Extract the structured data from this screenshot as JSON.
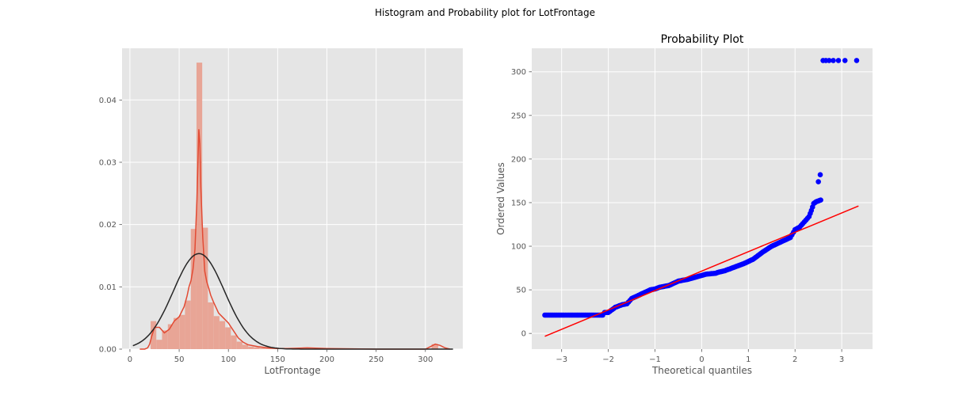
{
  "figure": {
    "suptitle": "Histogram and Probability plot for LotFrontage"
  },
  "colors": {
    "background": "#ffffff",
    "axes_bg": "#e5e5e5",
    "grid": "#ffffff",
    "hist": "#e8a596",
    "kde": "#e24a33",
    "normal_fit": "#262626",
    "qq_points": "#0000ff",
    "qq_line": "#ff0000",
    "tick_text": "#555555",
    "label_text": "#555555"
  },
  "chart_data": [
    {
      "type": "histogram",
      "title": "",
      "xlabel": "LotFrontage",
      "ylabel": "",
      "xlim": [
        -8,
        338
      ],
      "ylim": [
        0,
        0.0483
      ],
      "xticks": [
        0,
        50,
        100,
        150,
        200,
        250,
        300
      ],
      "xtick_labels": [
        "0",
        "50",
        "100",
        "150",
        "200",
        "250",
        "300"
      ],
      "yticks": [
        0,
        0.01,
        0.02,
        0.03,
        0.04
      ],
      "ytick_labels": [
        "0.00",
        "0.01",
        "0.02",
        "0.03",
        "0.04"
      ],
      "grid": true,
      "bins": [
        {
          "x0": 21.0,
          "x1": 26.8,
          "density": 0.0045
        },
        {
          "x0": 26.8,
          "x1": 32.6,
          "density": 0.0015
        },
        {
          "x0": 32.6,
          "x1": 38.5,
          "density": 0.003
        },
        {
          "x0": 38.5,
          "x1": 44.3,
          "density": 0.004
        },
        {
          "x0": 44.3,
          "x1": 50.1,
          "density": 0.005
        },
        {
          "x0": 50.1,
          "x1": 55.9,
          "density": 0.0055
        },
        {
          "x0": 55.9,
          "x1": 61.8,
          "density": 0.0078
        },
        {
          "x0": 61.8,
          "x1": 67.6,
          "density": 0.0193
        },
        {
          "x0": 67.6,
          "x1": 73.4,
          "density": 0.046
        },
        {
          "x0": 73.4,
          "x1": 79.2,
          "density": 0.0195
        },
        {
          "x0": 79.2,
          "x1": 85.1,
          "density": 0.0075
        },
        {
          "x0": 85.1,
          "x1": 90.9,
          "density": 0.0053
        },
        {
          "x0": 90.9,
          "x1": 96.7,
          "density": 0.0045
        },
        {
          "x0": 96.7,
          "x1": 102.5,
          "density": 0.0035
        },
        {
          "x0": 102.5,
          "x1": 108.4,
          "density": 0.0022
        },
        {
          "x0": 108.4,
          "x1": 114.2,
          "density": 0.0012
        },
        {
          "x0": 114.2,
          "x1": 120.0,
          "density": 0.0007
        },
        {
          "x0": 120.0,
          "x1": 125.8,
          "density": 0.0004
        },
        {
          "x0": 125.8,
          "x1": 131.7,
          "density": 0.0003
        },
        {
          "x0": 131.7,
          "x1": 137.5,
          "density": 0.0002
        },
        {
          "x0": 137.5,
          "x1": 143.3,
          "density": 0.0002
        },
        {
          "x0": 143.3,
          "x1": 149.1,
          "density": 0.0001
        },
        {
          "x0": 149.1,
          "x1": 155.0,
          "density": 0.0001
        },
        {
          "x0": 172.3,
          "x1": 178.2,
          "density": 0.0001
        },
        {
          "x0": 178.2,
          "x1": 184.0,
          "density": 0.0001
        },
        {
          "x0": 306.3,
          "x1": 313.0,
          "density": 0.0008
        }
      ],
      "kde": {
        "name": "",
        "x": [
          10,
          15,
          18,
          20,
          22,
          25,
          30,
          35,
          40,
          45,
          50,
          55,
          58,
          60,
          62,
          64,
          66,
          68,
          69,
          70,
          71,
          72,
          74,
          76,
          78,
          80,
          82,
          85,
          88,
          90,
          95,
          100,
          105,
          110,
          115,
          120,
          130,
          140,
          150,
          160,
          180,
          200,
          250,
          290,
          300,
          305,
          310,
          315,
          320,
          325
        ],
        "y": [
          0.0,
          0.0,
          0.0002,
          0.0008,
          0.002,
          0.0035,
          0.0035,
          0.0026,
          0.0032,
          0.0045,
          0.0052,
          0.0068,
          0.0085,
          0.01,
          0.011,
          0.0128,
          0.016,
          0.024,
          0.0295,
          0.0353,
          0.033,
          0.026,
          0.0178,
          0.0125,
          0.0108,
          0.0098,
          0.0087,
          0.0075,
          0.0065,
          0.0058,
          0.005,
          0.0042,
          0.003,
          0.0018,
          0.0011,
          0.0007,
          0.0004,
          0.0002,
          0.0001,
          0.0001,
          0.0002,
          0.0001,
          0.0,
          0.0,
          0.0,
          0.0004,
          0.0008,
          0.0006,
          0.0002,
          0.0
        ]
      },
      "normal_fit": {
        "name": "",
        "mean": 70.05,
        "std": 26.0,
        "x_range": [
          3,
          328
        ]
      }
    },
    {
      "type": "scatter",
      "title": "Probability Plot",
      "xlabel": "Theoretical quantiles",
      "ylabel": "Ordered Values",
      "xlim": [
        -3.64,
        3.66
      ],
      "ylim": [
        -18,
        327
      ],
      "xticks": [
        -3,
        -2,
        -1,
        0,
        1,
        2,
        3
      ],
      "xtick_labels": [
        "−3",
        "−2",
        "−1",
        "0",
        "1",
        "2",
        "3"
      ],
      "yticks": [
        0,
        50,
        100,
        150,
        200,
        250,
        300
      ],
      "ytick_labels": [
        "0",
        "50",
        "100",
        "150",
        "200",
        "250",
        "300"
      ],
      "grid": true,
      "quantile_curve": {
        "x": [
          -3.36,
          -3.1,
          -2.95,
          -2.85,
          -2.7,
          -2.5,
          -2.3,
          -2.2,
          -2.12,
          -2.08,
          -2.0,
          -1.85,
          -1.7,
          -1.6,
          -1.5,
          -1.3,
          -1.1,
          -1.0,
          -0.9,
          -0.7,
          -0.5,
          -0.3,
          -0.1,
          0.1,
          0.3,
          0.35,
          0.5,
          0.7,
          0.9,
          1.1,
          1.3,
          1.5,
          1.7,
          1.9,
          2.0,
          2.1,
          2.2,
          2.3,
          2.35,
          2.4,
          2.45,
          2.5,
          2.55
        ],
        "y": [
          21,
          21,
          21,
          21,
          21,
          21,
          21,
          21,
          21,
          24,
          24,
          30,
          33,
          34,
          40,
          45,
          50,
          51,
          53,
          55,
          60,
          62,
          65,
          68,
          69,
          70,
          72,
          76,
          80,
          85,
          93,
          100,
          105,
          110,
          119,
          122,
          128,
          134,
          141,
          149,
          151,
          152,
          153
        ]
      },
      "extreme_points": [
        {
          "x": 2.5,
          "y": 174
        },
        {
          "x": 2.54,
          "y": 182
        },
        {
          "x": 2.6,
          "y": 313
        },
        {
          "x": 2.66,
          "y": 313
        },
        {
          "x": 2.73,
          "y": 313
        },
        {
          "x": 2.82,
          "y": 313
        },
        {
          "x": 2.93,
          "y": 313
        },
        {
          "x": 3.07,
          "y": 313
        },
        {
          "x": 3.32,
          "y": 313
        }
      ],
      "fit_line": {
        "x": [
          -3.36,
          3.36
        ],
        "y": [
          -3.3,
          146.2
        ]
      }
    }
  ]
}
